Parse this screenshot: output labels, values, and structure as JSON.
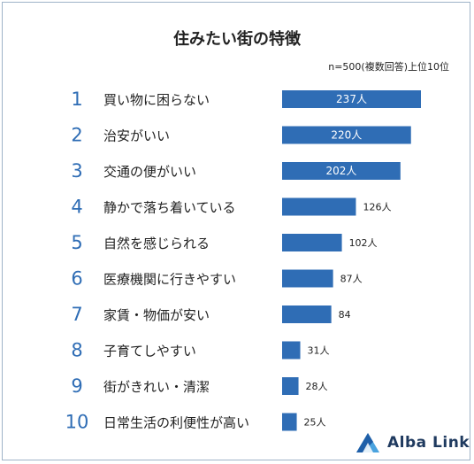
{
  "chart_data": {
    "type": "bar",
    "orientation": "horizontal",
    "title": "住みたい街の特徴",
    "note": "n=500(複数回答)上位10位",
    "unit": "人",
    "categories": [
      "買い物に困らない",
      "治安がいい",
      "交通の便がいい",
      "静かで落ち着いている",
      "自然を感じられる",
      "医療機関に行きやすい",
      "家賃・物価が安い",
      "子育てしやすい",
      "街がきれい・清潔",
      "日常生活の利便性が高い"
    ],
    "ranks": [
      "1",
      "2",
      "3",
      "4",
      "5",
      "6",
      "7",
      "8",
      "9",
      "10"
    ],
    "values": [
      237,
      220,
      202,
      126,
      102,
      87,
      84,
      31,
      28,
      25
    ],
    "data_labels": [
      "237人",
      "220人",
      "202人",
      "126人",
      "102人",
      "87人",
      "84",
      "31人",
      "28人",
      "25人"
    ],
    "bar_color": "#2f6db5",
    "rank_color": "#2f6db5"
  },
  "brand": {
    "name": "Alba Link",
    "logo_icon": "triangle-logo-icon"
  }
}
